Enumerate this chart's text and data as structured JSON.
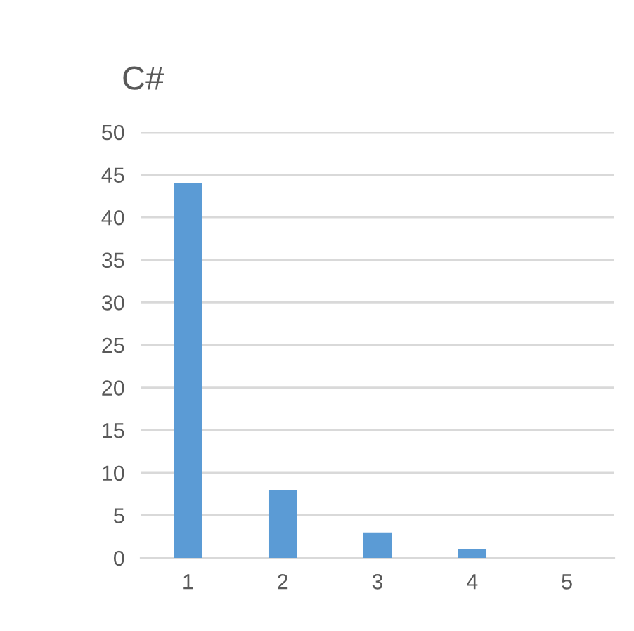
{
  "chart_data": {
    "type": "bar",
    "title": "C#",
    "categories": [
      "1",
      "2",
      "3",
      "4",
      "5"
    ],
    "values": [
      44,
      8,
      3,
      1,
      0
    ],
    "color": "#5b9bd5",
    "ylim": [
      0,
      50
    ],
    "yticks": [
      0,
      5,
      10,
      15,
      20,
      25,
      30,
      35,
      40,
      45,
      50
    ],
    "grid": "y"
  }
}
